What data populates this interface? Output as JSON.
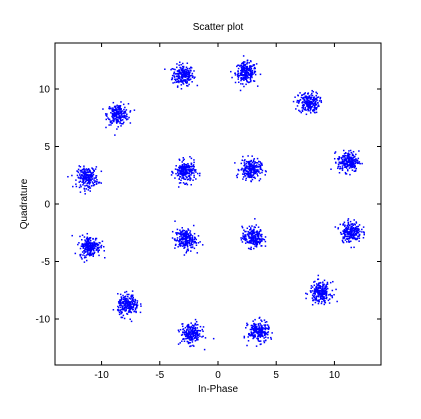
{
  "chart_data": {
    "type": "scatter",
    "title": "Scatter plot",
    "xlabel": "In-Phase",
    "ylabel": "Quadrature",
    "xlim": [
      -14,
      14
    ],
    "ylim": [
      -14,
      14
    ],
    "x_ticks": [
      -10,
      -5,
      0,
      5,
      10
    ],
    "y_ticks": [
      10,
      5,
      0,
      -5,
      -10
    ],
    "x_tick_labels": [
      "-10",
      "-5",
      "0",
      "5",
      "10"
    ],
    "y_tick_labels": [
      "10",
      "5",
      "0",
      "-5",
      "-10"
    ],
    "grid": false,
    "marker_color": "#0000ff",
    "cluster_spread": 0.45,
    "points_per_cluster": 220,
    "cluster_centers": [
      {
        "x": -3.0,
        "y": 11.2
      },
      {
        "x": 2.4,
        "y": 11.4
      },
      {
        "x": -8.6,
        "y": 7.8
      },
      {
        "x": 7.8,
        "y": 8.8
      },
      {
        "x": -11.2,
        "y": 2.3
      },
      {
        "x": -2.8,
        "y": 2.8
      },
      {
        "x": 2.8,
        "y": 3.0
      },
      {
        "x": 11.2,
        "y": 3.7
      },
      {
        "x": -11.0,
        "y": -3.7
      },
      {
        "x": -2.8,
        "y": -3.1
      },
      {
        "x": 3.0,
        "y": -2.9
      },
      {
        "x": 11.4,
        "y": -2.4
      },
      {
        "x": -7.7,
        "y": -8.8
      },
      {
        "x": 8.8,
        "y": -7.7
      },
      {
        "x": -2.3,
        "y": -11.3
      },
      {
        "x": 3.5,
        "y": -11.1
      }
    ]
  }
}
